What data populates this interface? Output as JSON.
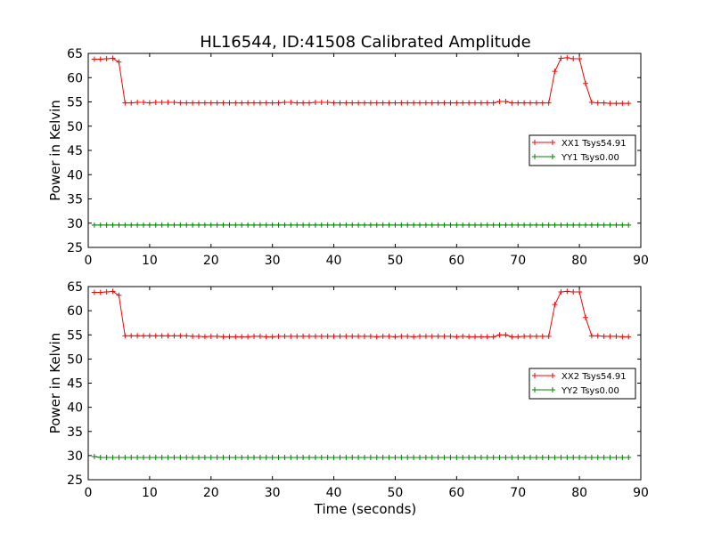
{
  "figure": {
    "title": "HL16544, ID:41508 Calibrated Amplitude",
    "xlabel": "Time (seconds)"
  },
  "chart_data": [
    {
      "type": "line",
      "title": "HL16544, ID:41508 Calibrated Amplitude",
      "xlabel": "",
      "ylabel": "Power in Kelvin",
      "xlim": [
        0,
        90
      ],
      "ylim": [
        25,
        65
      ],
      "xticks": [
        0,
        10,
        20,
        30,
        40,
        50,
        60,
        70,
        80,
        90
      ],
      "yticks": [
        25,
        30,
        35,
        40,
        45,
        50,
        55,
        60,
        65
      ],
      "grid": false,
      "legend_position": "center-right",
      "marker": "+",
      "x": [
        1,
        2,
        3,
        4,
        5,
        6,
        7,
        8,
        9,
        10,
        11,
        12,
        13,
        14,
        15,
        16,
        17,
        18,
        19,
        20,
        21,
        22,
        23,
        24,
        25,
        26,
        27,
        28,
        29,
        30,
        31,
        32,
        33,
        34,
        35,
        36,
        37,
        38,
        39,
        40,
        41,
        42,
        43,
        44,
        45,
        46,
        47,
        48,
        49,
        50,
        51,
        52,
        53,
        54,
        55,
        56,
        57,
        58,
        59,
        60,
        61,
        62,
        63,
        64,
        65,
        66,
        67,
        68,
        69,
        70,
        71,
        72,
        73,
        74,
        75,
        76,
        77,
        78,
        79,
        80,
        81,
        82,
        83,
        84,
        85,
        86,
        87,
        88
      ],
      "series": [
        {
          "name": "XX1 Tsys54.91",
          "color": "#ff0000",
          "values": [
            63.8,
            63.8,
            63.9,
            64.0,
            63.2,
            54.8,
            54.8,
            54.9,
            54.9,
            54.8,
            54.9,
            54.9,
            54.9,
            54.9,
            54.8,
            54.8,
            54.8,
            54.8,
            54.8,
            54.8,
            54.8,
            54.8,
            54.8,
            54.8,
            54.8,
            54.8,
            54.8,
            54.8,
            54.8,
            54.8,
            54.8,
            54.9,
            54.9,
            54.8,
            54.8,
            54.8,
            54.9,
            54.9,
            54.9,
            54.8,
            54.8,
            54.8,
            54.8,
            54.8,
            54.8,
            54.8,
            54.8,
            54.8,
            54.8,
            54.8,
            54.8,
            54.8,
            54.8,
            54.8,
            54.8,
            54.8,
            54.8,
            54.8,
            54.8,
            54.8,
            54.8,
            54.8,
            54.8,
            54.8,
            54.8,
            54.8,
            55.1,
            55.1,
            54.8,
            54.8,
            54.8,
            54.8,
            54.8,
            54.8,
            54.8,
            61.3,
            64.0,
            64.1,
            63.9,
            63.9,
            58.8,
            54.9,
            54.8,
            54.8,
            54.7,
            54.7,
            54.7,
            54.7
          ]
        },
        {
          "name": "YY1 Tsys0.00",
          "color": "#008000",
          "values": [
            29.6,
            29.6,
            29.6,
            29.6,
            29.6,
            29.6,
            29.6,
            29.6,
            29.6,
            29.6,
            29.6,
            29.6,
            29.6,
            29.6,
            29.6,
            29.6,
            29.6,
            29.6,
            29.6,
            29.6,
            29.6,
            29.6,
            29.6,
            29.6,
            29.6,
            29.6,
            29.6,
            29.6,
            29.6,
            29.6,
            29.6,
            29.6,
            29.6,
            29.6,
            29.6,
            29.6,
            29.6,
            29.6,
            29.6,
            29.6,
            29.6,
            29.6,
            29.6,
            29.6,
            29.6,
            29.6,
            29.6,
            29.6,
            29.6,
            29.6,
            29.6,
            29.6,
            29.6,
            29.6,
            29.6,
            29.6,
            29.6,
            29.6,
            29.6,
            29.6,
            29.6,
            29.6,
            29.6,
            29.6,
            29.6,
            29.6,
            29.6,
            29.6,
            29.6,
            29.6,
            29.6,
            29.6,
            29.6,
            29.6,
            29.6,
            29.6,
            29.6,
            29.6,
            29.6,
            29.6,
            29.6,
            29.6,
            29.6,
            29.6,
            29.6,
            29.6,
            29.6,
            29.6
          ]
        }
      ]
    },
    {
      "type": "line",
      "title": "",
      "xlabel": "Time (seconds)",
      "ylabel": "Power in Kelvin",
      "xlim": [
        0,
        90
      ],
      "ylim": [
        25,
        65
      ],
      "xticks": [
        0,
        10,
        20,
        30,
        40,
        50,
        60,
        70,
        80,
        90
      ],
      "yticks": [
        25,
        30,
        35,
        40,
        45,
        50,
        55,
        60,
        65
      ],
      "grid": false,
      "legend_position": "center-right",
      "marker": "+",
      "x": [
        1,
        2,
        3,
        4,
        5,
        6,
        7,
        8,
        9,
        10,
        11,
        12,
        13,
        14,
        15,
        16,
        17,
        18,
        19,
        20,
        21,
        22,
        23,
        24,
        25,
        26,
        27,
        28,
        29,
        30,
        31,
        32,
        33,
        34,
        35,
        36,
        37,
        38,
        39,
        40,
        41,
        42,
        43,
        44,
        45,
        46,
        47,
        48,
        49,
        50,
        51,
        52,
        53,
        54,
        55,
        56,
        57,
        58,
        59,
        60,
        61,
        62,
        63,
        64,
        65,
        66,
        67,
        68,
        69,
        70,
        71,
        72,
        73,
        74,
        75,
        76,
        77,
        78,
        79,
        80,
        81,
        82,
        83,
        84,
        85,
        86,
        87,
        88
      ],
      "series": [
        {
          "name": "XX2 Tsys54.91",
          "color": "#ff0000",
          "values": [
            63.8,
            63.8,
            63.9,
            64.0,
            63.2,
            54.8,
            54.8,
            54.8,
            54.8,
            54.8,
            54.8,
            54.8,
            54.8,
            54.8,
            54.8,
            54.8,
            54.7,
            54.7,
            54.6,
            54.7,
            54.7,
            54.6,
            54.6,
            54.6,
            54.6,
            54.6,
            54.7,
            54.7,
            54.6,
            54.6,
            54.7,
            54.7,
            54.7,
            54.7,
            54.7,
            54.7,
            54.7,
            54.7,
            54.7,
            54.7,
            54.7,
            54.7,
            54.7,
            54.7,
            54.7,
            54.7,
            54.6,
            54.7,
            54.7,
            54.6,
            54.7,
            54.7,
            54.6,
            54.7,
            54.7,
            54.7,
            54.7,
            54.7,
            54.7,
            54.6,
            54.7,
            54.6,
            54.6,
            54.6,
            54.6,
            54.6,
            55.0,
            55.0,
            54.6,
            54.6,
            54.7,
            54.7,
            54.7,
            54.7,
            54.7,
            61.3,
            63.9,
            64.0,
            63.9,
            63.9,
            58.6,
            54.8,
            54.8,
            54.7,
            54.7,
            54.7,
            54.6,
            54.6
          ]
        },
        {
          "name": "YY2 Tsys0.00",
          "color": "#008000",
          "values": [
            29.8,
            29.6,
            29.6,
            29.6,
            29.6,
            29.6,
            29.6,
            29.6,
            29.6,
            29.6,
            29.6,
            29.6,
            29.6,
            29.6,
            29.6,
            29.6,
            29.6,
            29.6,
            29.6,
            29.6,
            29.6,
            29.6,
            29.6,
            29.6,
            29.6,
            29.6,
            29.6,
            29.6,
            29.6,
            29.6,
            29.6,
            29.6,
            29.6,
            29.6,
            29.6,
            29.6,
            29.6,
            29.6,
            29.6,
            29.6,
            29.6,
            29.6,
            29.6,
            29.6,
            29.6,
            29.6,
            29.6,
            29.6,
            29.6,
            29.6,
            29.6,
            29.6,
            29.6,
            29.6,
            29.6,
            29.6,
            29.6,
            29.6,
            29.6,
            29.6,
            29.6,
            29.6,
            29.6,
            29.6,
            29.6,
            29.6,
            29.6,
            29.6,
            29.6,
            29.6,
            29.6,
            29.6,
            29.6,
            29.6,
            29.6,
            29.6,
            29.6,
            29.6,
            29.6,
            29.6,
            29.6,
            29.6,
            29.6,
            29.6,
            29.6,
            29.6,
            29.6,
            29.6
          ]
        }
      ]
    }
  ]
}
